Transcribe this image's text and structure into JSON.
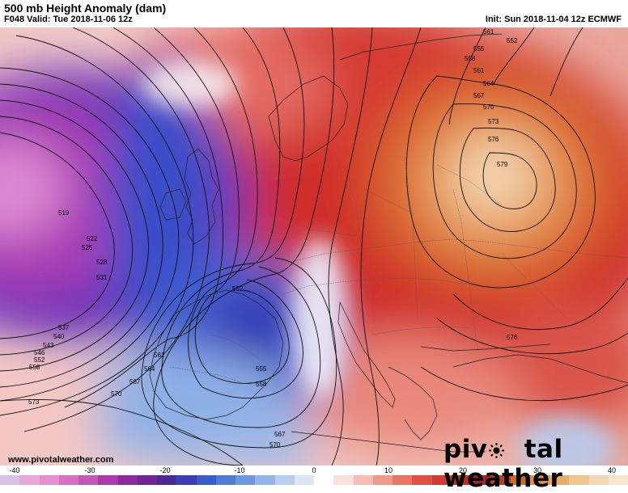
{
  "header": {
    "title": "500 mb Height Anomaly (dam)",
    "valid": "F048 Valid: Tue 2018-11-06 12z",
    "init": "Init: Sun 2018-11-04 12z ECMWF"
  },
  "footer": {
    "website": "www.pivotalweather.com",
    "brand_left": "piv",
    "brand_right": "tal weather"
  },
  "contour_labels": [
    "519",
    "522",
    "525",
    "528",
    "531",
    "537",
    "540",
    "543",
    "546",
    "552",
    "558",
    "552",
    "555",
    "558",
    "561",
    "564",
    "567",
    "570",
    "573",
    "567",
    "570",
    "561",
    "552",
    "555",
    "558",
    "561",
    "564",
    "567",
    "570",
    "573",
    "576",
    "579",
    "576"
  ],
  "colors": {
    "strong_negative": "#7a1f9e",
    "negative": "#3b4ec9",
    "neutral": "#ffffff",
    "positive": "#d93a2b",
    "strong_positive": "#f3d7b4"
  },
  "scale": {
    "ticks": [
      "-40",
      "-30",
      "-20",
      "-10",
      "0",
      "10",
      "20",
      "30",
      "40"
    ],
    "colors": [
      "#d6c2e6",
      "#e6a6d8",
      "#e48fcf",
      "#d86fc4",
      "#c456b8",
      "#a93aa8",
      "#8c2a9e",
      "#6f2596",
      "#4b2a98",
      "#3b3fb3",
      "#3a5ccc",
      "#4f7bd6",
      "#6f97df",
      "#93b4e8",
      "#b8cdf0",
      "#dce6f7",
      "#ffffff",
      "#fbe0dc",
      "#f6bdb5",
      "#f0998c",
      "#e97564",
      "#e0513f",
      "#d13a2e",
      "#bd2b25",
      "#a92121",
      "#b8401e",
      "#cc6a2a",
      "#dd9044",
      "#e8ad67",
      "#efc68e",
      "#f3d8b3",
      "#f6e6d0"
    ]
  }
}
